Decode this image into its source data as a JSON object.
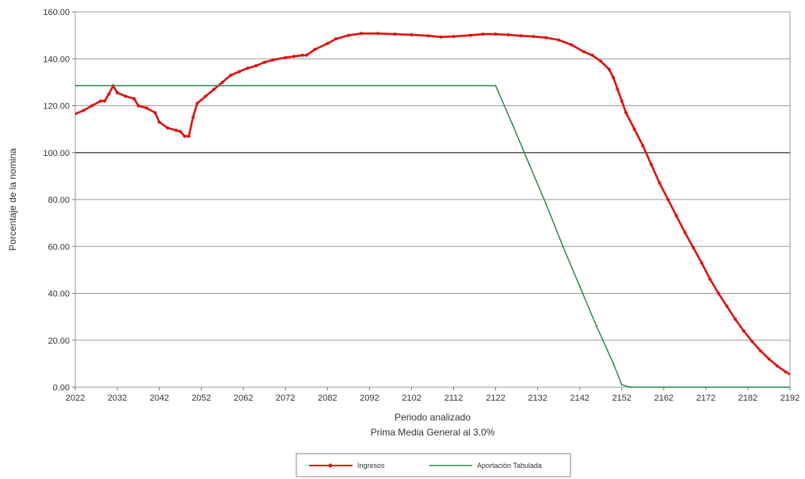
{
  "chart_data": {
    "type": "line",
    "xlabel": "Periodo analizado",
    "subtitle": "Prima Media General al 3.0%",
    "ylabel": "Porcentaje de la nomina",
    "ylim": [
      0,
      160
    ],
    "xlim": [
      2022,
      2192
    ],
    "y_ticks": [
      "0.00",
      "20.00",
      "40.00",
      "60.00",
      "80.00",
      "100.00",
      "120.00",
      "140.00",
      "160.00"
    ],
    "x_ticks": [
      "2022",
      "2032",
      "2042",
      "2052",
      "2062",
      "2072",
      "2082",
      "2092",
      "2102",
      "2112",
      "2122",
      "2132",
      "2142",
      "2152",
      "2162",
      "2172",
      "2182",
      "2192"
    ],
    "grid": true,
    "legend_position": "bottom",
    "series": [
      {
        "name": "Ingresos",
        "color": "#dd1111",
        "points": [
          [
            2022,
            116.5
          ],
          [
            2024,
            118
          ],
          [
            2026,
            120
          ],
          [
            2028,
            122
          ],
          [
            2029,
            122
          ],
          [
            2030,
            125
          ],
          [
            2031,
            128.5
          ],
          [
            2032,
            125.5
          ],
          [
            2034,
            124
          ],
          [
            2036,
            123
          ],
          [
            2037,
            120
          ],
          [
            2039,
            119
          ],
          [
            2041,
            117
          ],
          [
            2042,
            113
          ],
          [
            2044,
            110.5
          ],
          [
            2046,
            109.5
          ],
          [
            2047,
            109
          ],
          [
            2048,
            107
          ],
          [
            2049,
            107
          ],
          [
            2050,
            115
          ],
          [
            2051,
            121
          ],
          [
            2053,
            124
          ],
          [
            2055,
            127
          ],
          [
            2057,
            130
          ],
          [
            2059,
            133
          ],
          [
            2061,
            134.5
          ],
          [
            2063,
            136
          ],
          [
            2065,
            137
          ],
          [
            2067,
            138.5
          ],
          [
            2069,
            139.5
          ],
          [
            2072,
            140.5
          ],
          [
            2074,
            141
          ],
          [
            2076,
            141.5
          ],
          [
            2077,
            141.5
          ],
          [
            2079,
            144
          ],
          [
            2082,
            146.5
          ],
          [
            2084,
            148.5
          ],
          [
            2087,
            150
          ],
          [
            2090,
            150.8
          ],
          [
            2094,
            150.8
          ],
          [
            2098,
            150.5
          ],
          [
            2102,
            150.2
          ],
          [
            2106,
            149.8
          ],
          [
            2109,
            149.3
          ],
          [
            2112,
            149.5
          ],
          [
            2116,
            150
          ],
          [
            2119,
            150.5
          ],
          [
            2122,
            150.5
          ],
          [
            2125,
            150.2
          ],
          [
            2128,
            149.8
          ],
          [
            2131,
            149.5
          ],
          [
            2134,
            149
          ],
          [
            2137,
            148
          ],
          [
            2140,
            146
          ],
          [
            2143,
            143
          ],
          [
            2145,
            141.5
          ],
          [
            2147,
            139
          ],
          [
            2149,
            135.5
          ],
          [
            2150,
            132
          ],
          [
            2151,
            127
          ],
          [
            2152,
            122
          ],
          [
            2153,
            117
          ],
          [
            2155,
            110
          ],
          [
            2157,
            103
          ],
          [
            2159,
            95
          ],
          [
            2161,
            87
          ],
          [
            2163,
            80
          ],
          [
            2165,
            73
          ],
          [
            2167,
            66
          ],
          [
            2169,
            59.5
          ],
          [
            2171,
            53
          ],
          [
            2173,
            46
          ],
          [
            2175,
            40
          ],
          [
            2177,
            34.5
          ],
          [
            2179,
            29
          ],
          [
            2181,
            24
          ],
          [
            2183,
            19.5
          ],
          [
            2185,
            15.5
          ],
          [
            2187,
            12
          ],
          [
            2189,
            9
          ],
          [
            2191,
            6.5
          ],
          [
            2193,
            4.5
          ],
          [
            2195,
            3
          ],
          [
            2198,
            1.5
          ],
          [
            2200,
            1
          ]
        ]
      },
      {
        "name": "Aportación Tabulada",
        "color": "#2a8a4a",
        "points": [
          [
            2022,
            128.5
          ],
          [
            2122,
            128.5
          ],
          [
            2126,
            112
          ],
          [
            2130,
            95
          ],
          [
            2134,
            78
          ],
          [
            2138,
            60
          ],
          [
            2142,
            43
          ],
          [
            2146,
            26
          ],
          [
            2150,
            10
          ],
          [
            2152,
            1
          ],
          [
            2154,
            0
          ],
          [
            2200,
            0
          ]
        ]
      }
    ]
  }
}
